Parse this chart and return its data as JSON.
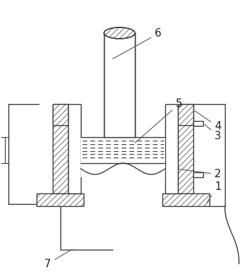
{
  "bg_color": "#ffffff",
  "line_color": "#3a3a3a",
  "dashed_color": "#3a3a3a",
  "figsize": [
    3.5,
    3.91
  ],
  "dpi": 100,
  "lw": 1.0,
  "hatch_lw": 0.5
}
